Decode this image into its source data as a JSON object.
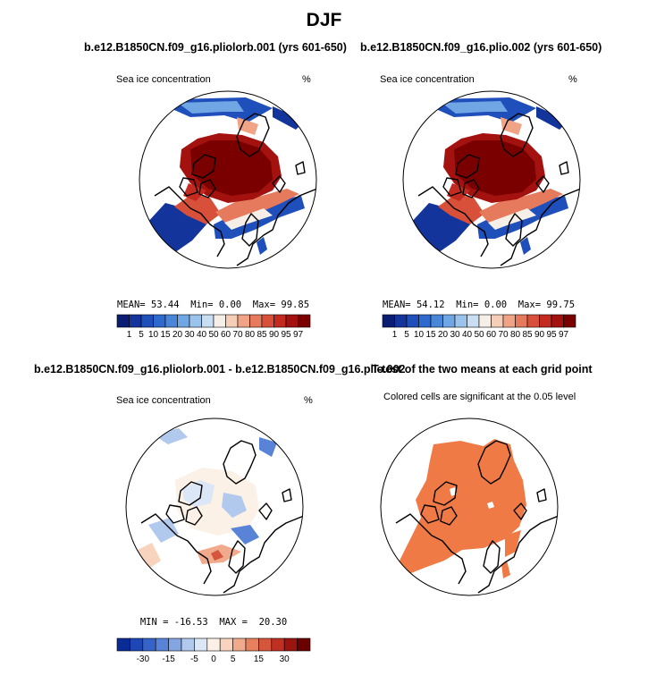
{
  "figure_title": "DJF",
  "panels": [
    {
      "title": "b.e12.B1850CN.f09_g16.pliolorb.001 (yrs 601-650)",
      "left_label": "Sea ice concentration",
      "right_label": "%",
      "stats": {
        "mean_label": "MEAN=",
        "mean": "53.44",
        "min_label": "Min=",
        "min": "0.00",
        "max_label": "Max=",
        "max": "99.85"
      },
      "colorbar_ticks": [
        "1",
        "5",
        "10",
        "15",
        "20",
        "30",
        "40",
        "50",
        "60",
        "70",
        "80",
        "85",
        "90",
        "95",
        "97"
      ]
    },
    {
      "title": "b.e12.B1850CN.f09_g16.plio.002 (yrs 601-650)",
      "left_label": "Sea ice concentration",
      "right_label": "%",
      "stats": {
        "mean_label": "MEAN=",
        "mean": "54.12",
        "min_label": "Min=",
        "min": "0.00",
        "max_label": "Max=",
        "max": "99.75"
      },
      "colorbar_ticks": [
        "1",
        "5",
        "10",
        "15",
        "20",
        "30",
        "40",
        "50",
        "60",
        "70",
        "80",
        "85",
        "90",
        "95",
        "97"
      ]
    },
    {
      "title": "b.e12.B1850CN.f09_g16.pliolorb.001 - b.e12.B1850CN.f09_g16.plio.002",
      "left_label": "Sea ice concentration",
      "right_label": "%",
      "stats_text": "MIN = -16.53  MAX =  20.30",
      "colorbar_ticks": [
        "-30",
        "-15",
        "-5",
        "0",
        "5",
        "15",
        "30"
      ]
    },
    {
      "title": "T-test of the two means at each grid point",
      "subtitle": "Colored cells are significant at the 0.05 level"
    }
  ],
  "colors": {
    "abs_scale": [
      "#0a1d72",
      "#13349a",
      "#1e4fbb",
      "#2e6acd",
      "#4a86d8",
      "#6fa6e3",
      "#9cc3ec",
      "#c9ddf3",
      "#f6efe8",
      "#f6cdb6",
      "#f1a386",
      "#e67a5c",
      "#d8503a",
      "#c32a20",
      "#a41210",
      "#7a0000"
    ],
    "diff_scale": [
      "#0a2a96",
      "#1d47b4",
      "#3563c8",
      "#5883d6",
      "#83a6e2",
      "#b2c9ee",
      "#dbe6f6",
      "#fbf1e6",
      "#f8d3bd",
      "#f1aa8b",
      "#e6805f",
      "#d6553d",
      "#bf2f22",
      "#9c1410",
      "#6b0000"
    ],
    "ttest": "#f07a45",
    "ice_core": "#8b0000"
  }
}
